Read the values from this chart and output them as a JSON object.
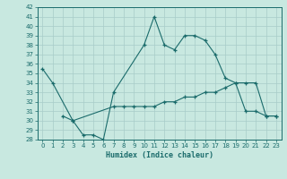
{
  "xlabel": "Humidex (Indice chaleur)",
  "ylim": [
    28,
    42
  ],
  "xlim": [
    -0.5,
    23.5
  ],
  "bg_color": "#c8e8e0",
  "line_color": "#1a6b6b",
  "grid_color": "#a8ccc8",
  "tick_color": "#1a6b6b",
  "line1_x": [
    0,
    1,
    3,
    4,
    5,
    6,
    7,
    10,
    11,
    12,
    13,
    14,
    15,
    16,
    17,
    18,
    19,
    20,
    21,
    22,
    23
  ],
  "line1_y": [
    35.5,
    34.0,
    30.0,
    28.5,
    28.5,
    28.0,
    33.0,
    38.0,
    41.0,
    38.0,
    37.5,
    39.0,
    39.0,
    38.5,
    37.0,
    34.5,
    34.0,
    31.0,
    31.0,
    30.5,
    30.5
  ],
  "line2_x": [
    2,
    3,
    7,
    8,
    9,
    10,
    11,
    12,
    13,
    14,
    15,
    16,
    17,
    18,
    19,
    20,
    21,
    22,
    23
  ],
  "line2_y": [
    30.5,
    30.0,
    31.5,
    31.5,
    31.5,
    31.5,
    31.5,
    32.0,
    32.0,
    32.5,
    32.5,
    33.0,
    33.0,
    33.5,
    34.0,
    34.0,
    34.0,
    30.5,
    30.5
  ]
}
